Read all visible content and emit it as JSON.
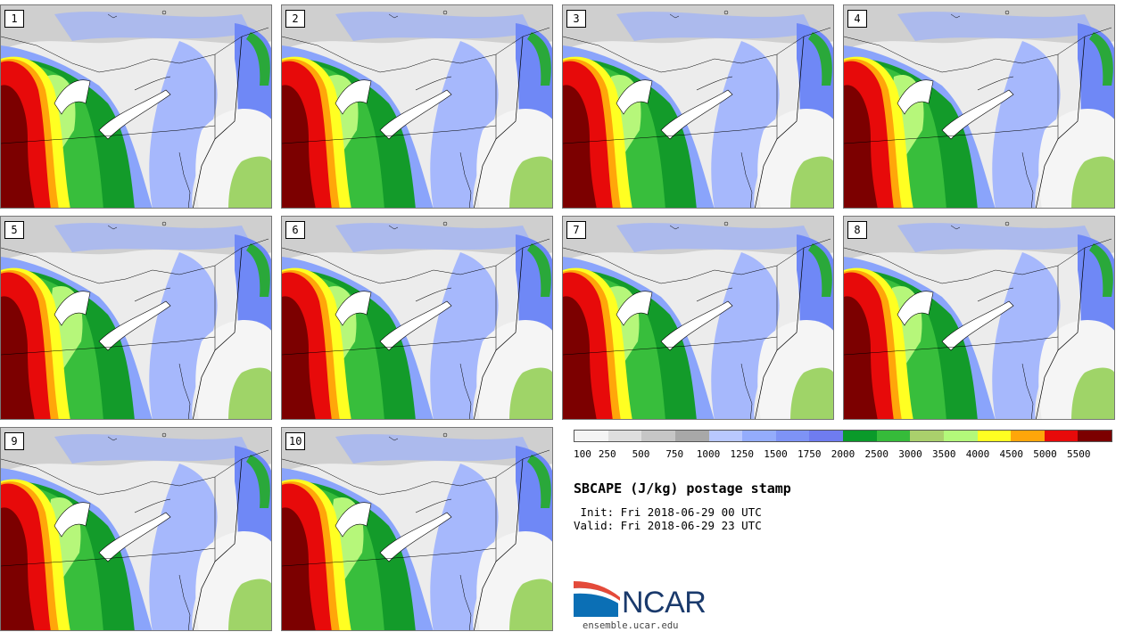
{
  "panels": [
    {
      "label": "1"
    },
    {
      "label": "2"
    },
    {
      "label": "3"
    },
    {
      "label": "4"
    },
    {
      "label": "5"
    },
    {
      "label": "6"
    },
    {
      "label": "7"
    },
    {
      "label": "8"
    },
    {
      "label": "9"
    },
    {
      "label": "10"
    }
  ],
  "colorbar": {
    "colors": [
      "#f4f4f4",
      "#dedede",
      "#c6c6c6",
      "#a8a8a8",
      "#b9c8ff",
      "#94acfc",
      "#7e93f6",
      "#6f7cf0",
      "#0a9a2a",
      "#36bb3a",
      "#aad06c",
      "#b3f97a",
      "#ffff22",
      "#ffa60a",
      "#e70a0a",
      "#7c0000"
    ],
    "tick_labels": [
      "100",
      "250",
      "500",
      "750",
      "1000",
      "1250",
      "1500",
      "1750",
      "2000",
      "2500",
      "3000",
      "3500",
      "4000",
      "4500",
      "5000",
      "5500"
    ]
  },
  "title": "SBCAPE (J/kg) postage stamp",
  "init_text": " Init: Fri 2018-06-29 00 UTC",
  "valid_text": "Valid: Fri 2018-06-29 23 UTC",
  "logo": {
    "wordmark": "NCAR"
  },
  "url": "ensemble.ucar.edu"
}
